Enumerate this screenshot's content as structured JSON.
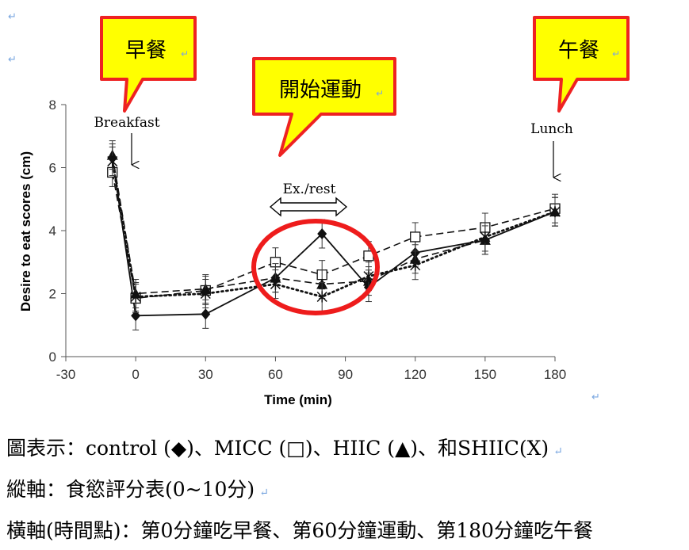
{
  "chart_data": {
    "type": "line",
    "xlabel": "Time (min)",
    "ylabel": "Desire to eat  scores (cm)",
    "xlim": [
      -30,
      180
    ],
    "ylim": [
      0,
      8
    ],
    "xticks": [
      "-30",
      "0",
      "30",
      "60",
      "90",
      "120",
      "150",
      "180"
    ],
    "yticks": [
      "0",
      "2",
      "4",
      "6",
      "8"
    ],
    "x": [
      -10,
      0,
      30,
      60,
      80,
      100,
      120,
      150,
      180
    ],
    "series": [
      {
        "name": "control",
        "marker": "diamond",
        "line": "solid",
        "values": [
          6.3,
          1.3,
          1.35,
          2.5,
          3.9,
          2.2,
          3.3,
          3.7,
          4.6
        ]
      },
      {
        "name": "MICC",
        "marker": "square",
        "line": "dashed",
        "values": [
          5.85,
          1.85,
          2.1,
          3.0,
          2.6,
          3.2,
          3.8,
          4.1,
          4.7
        ]
      },
      {
        "name": "HIIC",
        "marker": "triangle",
        "line": "dashed",
        "values": [
          6.4,
          2.0,
          2.15,
          2.5,
          2.3,
          2.4,
          3.1,
          3.7,
          4.6
        ]
      },
      {
        "name": "SHIIC",
        "marker": "x",
        "line": "dotted",
        "values": [
          6.2,
          1.9,
          2.0,
          2.3,
          1.9,
          2.55,
          2.9,
          3.8,
          4.6
        ]
      }
    ],
    "annotations": {
      "breakfast": "Breakfast",
      "lunch": "Lunch",
      "exercise": "Ex./rest"
    }
  },
  "callouts": {
    "breakfast_zh": "早餐",
    "exercise_zh": "開始運動",
    "lunch_zh": "午餐"
  },
  "captions": {
    "line1": "圖表示：control (◆)、MICC (□)、HIIC (▲)、和SHIIC(X)",
    "line2": "縱軸：食慾評分表(0~10分)",
    "line3": "橫軸(時間點)：第0分鐘吃早餐、第60分鐘運動、第180分鐘吃午餐"
  },
  "return_mark": "↵",
  "colors": {
    "callout_fill": "#ffff00",
    "callout_border": "#ee2222",
    "highlight_circle": "#ee1c1c",
    "axis": "#555555",
    "return_mark": "#7aa7e0"
  }
}
